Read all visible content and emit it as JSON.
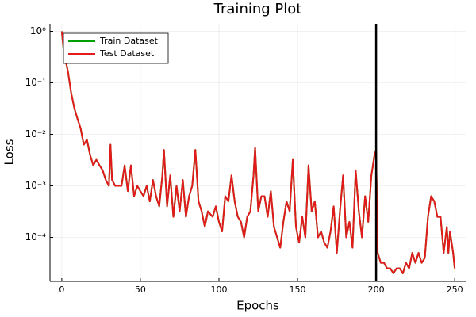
{
  "chart_data": {
    "type": "line",
    "title": "Training Plot",
    "x_label": "Epochs",
    "y_label": "Loss",
    "log_y": true,
    "grid": true,
    "legend": "top-left",
    "xlim": [
      -7.5,
      257.5
    ],
    "xticks": [
      0,
      50,
      100,
      150,
      200,
      250
    ],
    "ylim": [
      1.4e-05,
      1.4
    ],
    "yticks": [
      {
        "value": 1,
        "label": "10⁰"
      },
      {
        "value": 0.1,
        "label": "10⁻¹"
      },
      {
        "value": 0.01,
        "label": "10⁻²"
      },
      {
        "value": 0.001,
        "label": "10⁻³"
      },
      {
        "value": 0.0001,
        "label": "10⁻⁴"
      }
    ],
    "vlines": [
      200
    ],
    "x": [
      0,
      1,
      2,
      4,
      6,
      8,
      10,
      12,
      14,
      16,
      18,
      20,
      22,
      24,
      26,
      28,
      30,
      31,
      32,
      34,
      36,
      38,
      40,
      42,
      44,
      46,
      48,
      50,
      52,
      54,
      56,
      58,
      60,
      62,
      64,
      65,
      67,
      69,
      71,
      73,
      75,
      77,
      79,
      81,
      83,
      85,
      87,
      89,
      91,
      93,
      96,
      98,
      100,
      102,
      104,
      106,
      108,
      110,
      112,
      114,
      116,
      118,
      120,
      122,
      123,
      125,
      127,
      129,
      131,
      133,
      135,
      137,
      139,
      141,
      143,
      145,
      147,
      149,
      151,
      153,
      155,
      157,
      159,
      161,
      163,
      165,
      167,
      169,
      171,
      173,
      175,
      177,
      179,
      181,
      183,
      185,
      187,
      189,
      191,
      193,
      195,
      197,
      199,
      200,
      201,
      203,
      205,
      207,
      209,
      211,
      213,
      215,
      217,
      219,
      221,
      223,
      225,
      227,
      229,
      231,
      233,
      235,
      237,
      239,
      241,
      243,
      245,
      246,
      247,
      249,
      250
    ],
    "series": [
      {
        "name": "Train Dataset",
        "color": "#00a000",
        "values": [
          1,
          0.5,
          0.32,
          0.16,
          0.063,
          0.032,
          0.02,
          0.013,
          0.0063,
          0.0079,
          0.004,
          0.0025,
          0.0032,
          0.0025,
          0.002,
          0.0013,
          0.001,
          0.0063,
          0.0013,
          0.001,
          0.001,
          0.001,
          0.0025,
          0.00079,
          0.0025,
          0.00063,
          0.001,
          0.00079,
          0.00063,
          0.001,
          0.0005,
          0.0013,
          0.00063,
          0.0004,
          0.0016,
          0.005,
          0.0004,
          0.0016,
          0.00025,
          0.001,
          0.00032,
          0.0013,
          0.00025,
          0.00063,
          0.001,
          0.005,
          0.0005,
          0.00032,
          0.00016,
          0.00032,
          0.00025,
          0.0004,
          0.0002,
          0.00013,
          0.00063,
          0.0005,
          0.0016,
          0.0005,
          0.00025,
          0.0002,
          0.0001,
          0.00025,
          0.00032,
          0.0016,
          0.0056,
          0.00032,
          0.00063,
          0.00063,
          0.00025,
          0.00079,
          0.00016,
          0.0001,
          6.3e-05,
          0.0002,
          0.0005,
          0.00032,
          0.0032,
          0.00016,
          7.9e-05,
          0.00025,
          0.0001,
          0.0025,
          0.00032,
          0.0005,
          0.0001,
          0.00013,
          7.9e-05,
          6.3e-05,
          0.00013,
          0.0004,
          5e-05,
          0.00032,
          0.0016,
          0.0001,
          0.0002,
          6.3e-05,
          0.002,
          0.00032,
          0.0001,
          0.00063,
          0.0002,
          0.0016,
          0.004,
          0.005,
          5e-05,
          3.2e-05,
          3.2e-05,
          2.5e-05,
          2.5e-05,
          2e-05,
          2.5e-05,
          2.5e-05,
          2e-05,
          3.2e-05,
          2.5e-05,
          5e-05,
          3.2e-05,
          5e-05,
          3.2e-05,
          4e-05,
          0.00025,
          0.00063,
          0.0005,
          0.00025,
          0.00025,
          5e-05,
          0.00016,
          5e-05,
          0.00013,
          5e-05,
          2.5e-05
        ]
      },
      {
        "name": "Test Dataset",
        "color": "#e31a1c",
        "values": [
          1,
          0.5,
          0.32,
          0.16,
          0.063,
          0.032,
          0.02,
          0.013,
          0.0063,
          0.0079,
          0.004,
          0.0025,
          0.0032,
          0.0025,
          0.002,
          0.0013,
          0.001,
          0.0063,
          0.0013,
          0.001,
          0.001,
          0.001,
          0.0025,
          0.00079,
          0.0025,
          0.00063,
          0.001,
          0.00079,
          0.00063,
          0.001,
          0.0005,
          0.0013,
          0.00063,
          0.0004,
          0.0016,
          0.005,
          0.0004,
          0.0016,
          0.00025,
          0.001,
          0.00032,
          0.0013,
          0.00025,
          0.00063,
          0.001,
          0.005,
          0.0005,
          0.00032,
          0.00016,
          0.00032,
          0.00025,
          0.0004,
          0.0002,
          0.00013,
          0.00063,
          0.0005,
          0.0016,
          0.0005,
          0.00025,
          0.0002,
          0.0001,
          0.00025,
          0.00032,
          0.0016,
          0.0056,
          0.00032,
          0.00063,
          0.00063,
          0.00025,
          0.00079,
          0.00016,
          0.0001,
          6.3e-05,
          0.0002,
          0.0005,
          0.00032,
          0.0032,
          0.00016,
          7.9e-05,
          0.00025,
          0.0001,
          0.0025,
          0.00032,
          0.0005,
          0.0001,
          0.00013,
          7.9e-05,
          6.3e-05,
          0.00013,
          0.0004,
          5e-05,
          0.00032,
          0.0016,
          0.0001,
          0.0002,
          6.3e-05,
          0.002,
          0.00032,
          0.0001,
          0.00063,
          0.0002,
          0.0016,
          0.004,
          0.005,
          5e-05,
          3.2e-05,
          3.2e-05,
          2.5e-05,
          2.5e-05,
          2e-05,
          2.5e-05,
          2.5e-05,
          2e-05,
          3.2e-05,
          2.5e-05,
          5e-05,
          3.2e-05,
          5e-05,
          3.2e-05,
          4e-05,
          0.00025,
          0.00063,
          0.0005,
          0.00025,
          0.00025,
          5e-05,
          0.00016,
          5e-05,
          0.00013,
          5e-05,
          2.5e-05
        ]
      }
    ]
  }
}
